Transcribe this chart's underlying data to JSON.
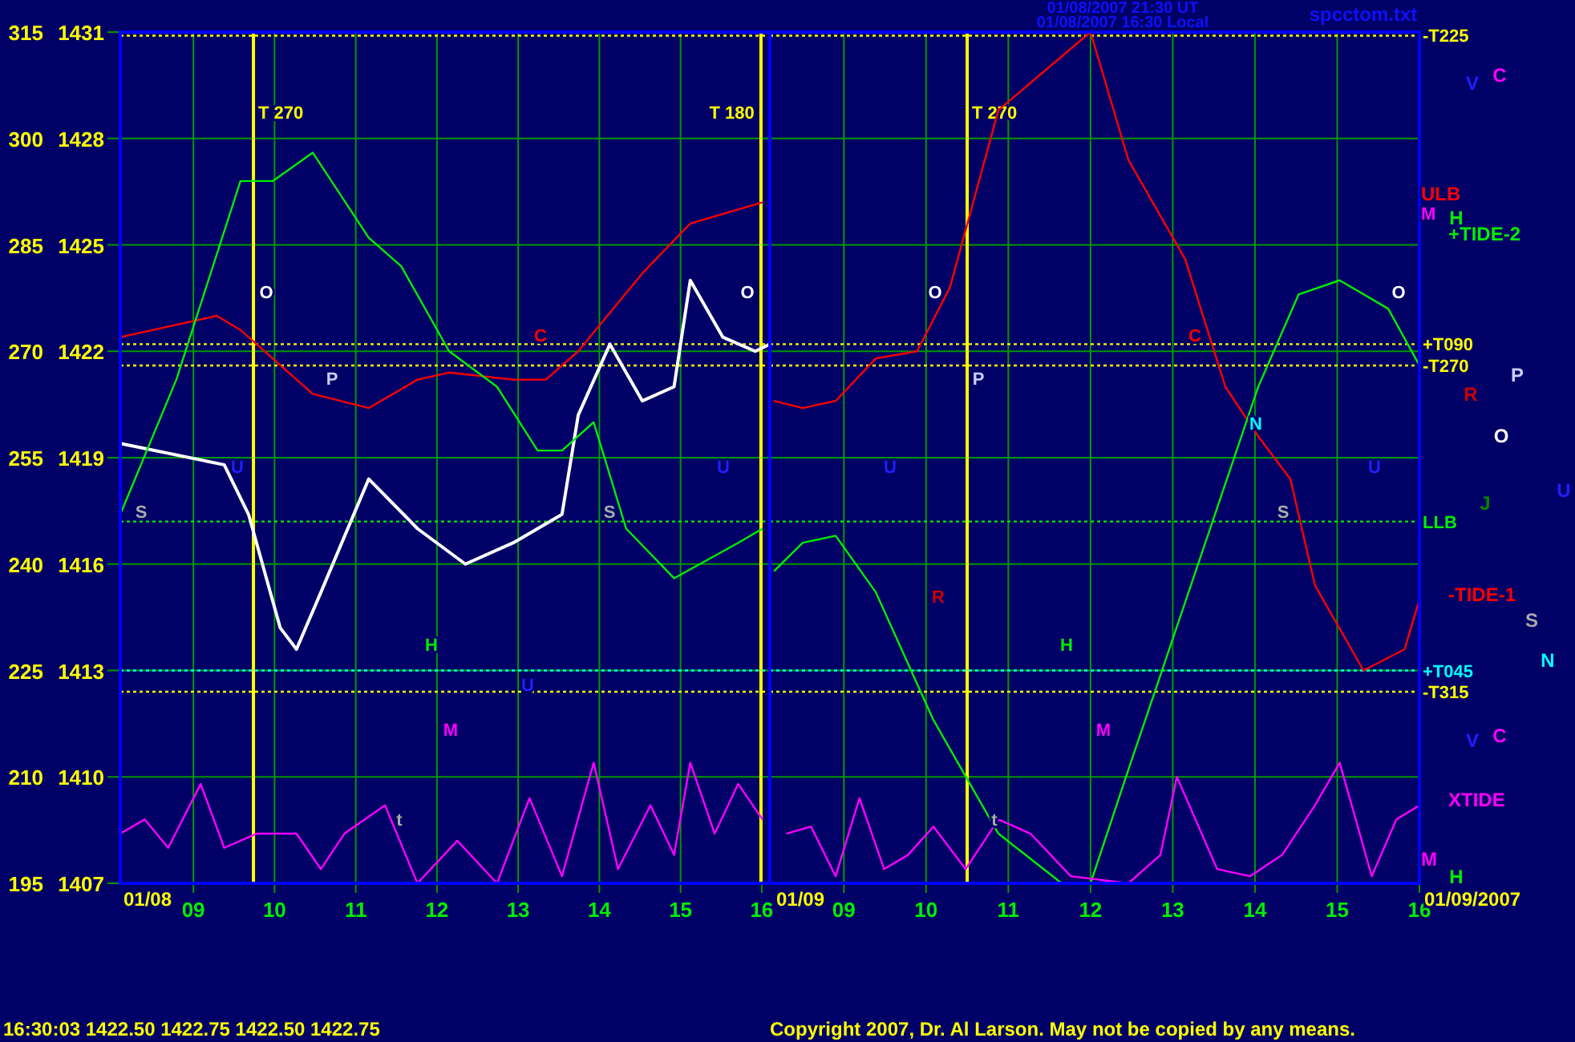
{
  "chart_data": [
    {
      "type": "line",
      "xlim": [
        8.1,
        16.1
      ],
      "ylim": [
        195,
        315
      ],
      "y2lim": [
        1407,
        1431
      ],
      "xticks": [
        {
          "value": 9,
          "label": "09"
        },
        10,
        11,
        12,
        13,
        14,
        15,
        16
      ],
      "yticks": [
        195,
        210,
        225,
        240,
        255,
        270,
        285,
        300,
        315
      ],
      "y2ticks": [
        1407,
        1410,
        1413,
        1416,
        1419,
        1422,
        1425,
        1428,
        1431
      ],
      "grid": true,
      "marker": "none",
      "line_style": "solid",
      "series": [
        {
          "color": "#ffffff",
          "axis": "y2",
          "x": [
            8.1,
            9.38,
            9.68,
            10.07,
            10.27,
            10.57,
            11.16,
            11.76,
            12.35,
            12.94,
            13.54,
            13.74,
            14.13,
            14.53,
            14.92,
            15.12,
            15.52,
            15.92,
            16.1
          ],
          "values": [
            1419.4,
            1418.8,
            1417.4,
            1414.2,
            1413.6,
            1415.2,
            1418.4,
            1417,
            1416,
            1416.6,
            1417.4,
            1420.2,
            1422.2,
            1420.6,
            1421,
            1424,
            1422.4,
            1422,
            1422.2
          ]
        },
        {
          "color": "#ff0000",
          "x": [
            8.1,
            9.29,
            9.58,
            10.47,
            11.16,
            11.76,
            12.15,
            12.94,
            13.34,
            13.74,
            14.53,
            15.12,
            16.01
          ],
          "values": [
            272,
            275,
            273,
            264,
            262,
            266,
            267,
            266,
            266,
            270,
            281,
            288,
            291
          ]
        },
        {
          "color": "#00ee00",
          "x": [
            8.1,
            8.79,
            9.58,
            9.98,
            10.47,
            11.16,
            11.56,
            12.15,
            12.74,
            13.24,
            13.54,
            13.93,
            14.33,
            14.92,
            15.71,
            16.01
          ],
          "values": [
            247,
            266,
            294,
            294,
            298,
            286,
            282,
            270,
            265,
            256,
            256,
            260,
            245,
            238,
            243,
            245
          ]
        },
        {
          "color": "#ff00ff",
          "x": [
            8.1,
            8.4,
            8.69,
            9.09,
            9.38,
            9.78,
            10.27,
            10.57,
            10.86,
            11.36,
            11.76,
            12.25,
            12.74,
            13.14,
            13.54,
            13.93,
            14.23,
            14.63,
            14.92,
            15.12,
            15.42,
            15.71,
            16.01
          ],
          "values": [
            202,
            204,
            200,
            209,
            200,
            202,
            202,
            197,
            202,
            206,
            195,
            201,
            195,
            207,
            196,
            212,
            197,
            206,
            199,
            212,
            202,
            209,
            204
          ]
        }
      ],
      "ref_lines": [
        {
          "axis": "y",
          "value": 314.5,
          "color": "#ffff00",
          "line_style": "dotted"
        },
        {
          "axis": "y",
          "value": 271,
          "color": "#ffff00",
          "line_style": "dotted"
        },
        {
          "axis": "y",
          "value": 268,
          "color": "#ffff00",
          "line_style": "dotted"
        },
        {
          "axis": "y",
          "value": 246,
          "color": "#00ee00",
          "line_style": "dotted"
        },
        {
          "axis": "y",
          "value": 225,
          "color": "#00ffff",
          "line_style": "dotted"
        },
        {
          "axis": "y",
          "value": 222,
          "color": "#ffff00",
          "line_style": "dotted"
        },
        {
          "axis": "x",
          "value": 9.74,
          "label": "T 270",
          "color": "#ffff00",
          "line_style": "solid"
        },
        {
          "axis": "x",
          "value": 15.99,
          "label": "T 180",
          "color": "#ffff00",
          "line_style": "solid"
        }
      ],
      "annotations": [
        "01/08",
        "16:30:03 1422.50 1422.75 1422.50 1422.75",
        "O",
        "P",
        "C",
        "O",
        "S",
        "S",
        "U",
        "U",
        "H",
        "M",
        "U",
        "t"
      ]
    },
    {
      "type": "line",
      "xlim": [
        8.1,
        16.0
      ],
      "ylim": [
        195,
        315
      ],
      "tick_labels": "x",
      "xticks": [
        {
          "value": 9,
          "label": "09"
        },
        10,
        11,
        12,
        13,
        14,
        15,
        16
      ],
      "yticks": [
        195,
        210,
        225,
        240,
        255,
        270,
        285,
        300,
        315
      ],
      "grid": true,
      "marker": "none",
      "line_style": "solid",
      "series": [
        {
          "name": "-TIDE-1",
          "color": "#ff0000",
          "x": [
            8.15,
            8.5,
            8.9,
            9.39,
            9.89,
            10.29,
            10.88,
            12.0,
            12.46,
            13.15,
            13.64,
            14.04,
            14.43,
            14.73,
            15.32,
            15.82,
            16.0
          ],
          "values": [
            263,
            262,
            263,
            269,
            270,
            279,
            304,
            315,
            297,
            283,
            265,
            258,
            252,
            237,
            225,
            228,
            235
          ]
        },
        {
          "name": "+TIDE-2",
          "color": "#00ee00",
          "x": [
            8.15,
            8.5,
            8.9,
            9.39,
            10.09,
            10.88,
            11.65,
            12.0,
            12.46,
            13.25,
            14.04,
            14.53,
            15.03,
            15.62,
            16.0
          ],
          "values": [
            239,
            243,
            244,
            236,
            218,
            202,
            195,
            195,
            211,
            238,
            265,
            278,
            280,
            276,
            268
          ]
        },
        {
          "name": "XTIDE",
          "color": "#ff00ff",
          "x": [
            8.3,
            8.6,
            8.9,
            9.19,
            9.49,
            9.78,
            10.09,
            10.48,
            10.88,
            11.27,
            11.76,
            12.46,
            12.85,
            13.05,
            13.54,
            13.94,
            14.33,
            14.73,
            15.03,
            15.42,
            15.72,
            16.0
          ],
          "values": [
            202,
            203,
            196,
            207,
            197,
            199,
            203,
            197,
            204,
            202,
            196,
            195,
            199,
            210,
            197,
            196,
            199,
            206,
            212,
            196,
            204,
            206
          ]
        }
      ],
      "ref_lines": [
        {
          "axis": "y",
          "value": 314.5,
          "label": "-T225",
          "color": "#ffff00",
          "line_style": "dotted"
        },
        {
          "axis": "y",
          "value": 271,
          "label": "+T090",
          "color": "#ffff00",
          "line_style": "dotted"
        },
        {
          "axis": "y",
          "value": 268,
          "label": "-T270",
          "color": "#ffff00",
          "line_style": "dotted"
        },
        {
          "axis": "y",
          "value": 246,
          "label": "LLB",
          "color": "#00ee00",
          "line_style": "dotted"
        },
        {
          "axis": "y",
          "value": 225,
          "label": "+T045",
          "color": "#00ffff",
          "line_style": "dotted"
        },
        {
          "axis": "y",
          "value": 222,
          "label": "-T315",
          "color": "#ffff00",
          "line_style": "dotted"
        },
        {
          "axis": "x",
          "value": 10.5,
          "label": "T 270",
          "color": "#ffff00",
          "line_style": "solid"
        }
      ],
      "annotations": [
        "01/08/2007 21:30 UT",
        "01/08/2007 16:30 Local",
        "spcctom.txt",
        "V",
        "C",
        "ULB",
        "M",
        "H",
        "P",
        "R",
        "O",
        "U",
        "J",
        "S",
        "N",
        "V",
        "C",
        "M",
        "H",
        "01/09/2007",
        "01/09",
        "Copyright 2007, Dr. Al Larson. May not be copied by any means.",
        "O",
        "P",
        "C",
        "N",
        "O",
        "S",
        "U",
        "U",
        "H",
        "M",
        "R",
        "t"
      ]
    }
  ]
}
